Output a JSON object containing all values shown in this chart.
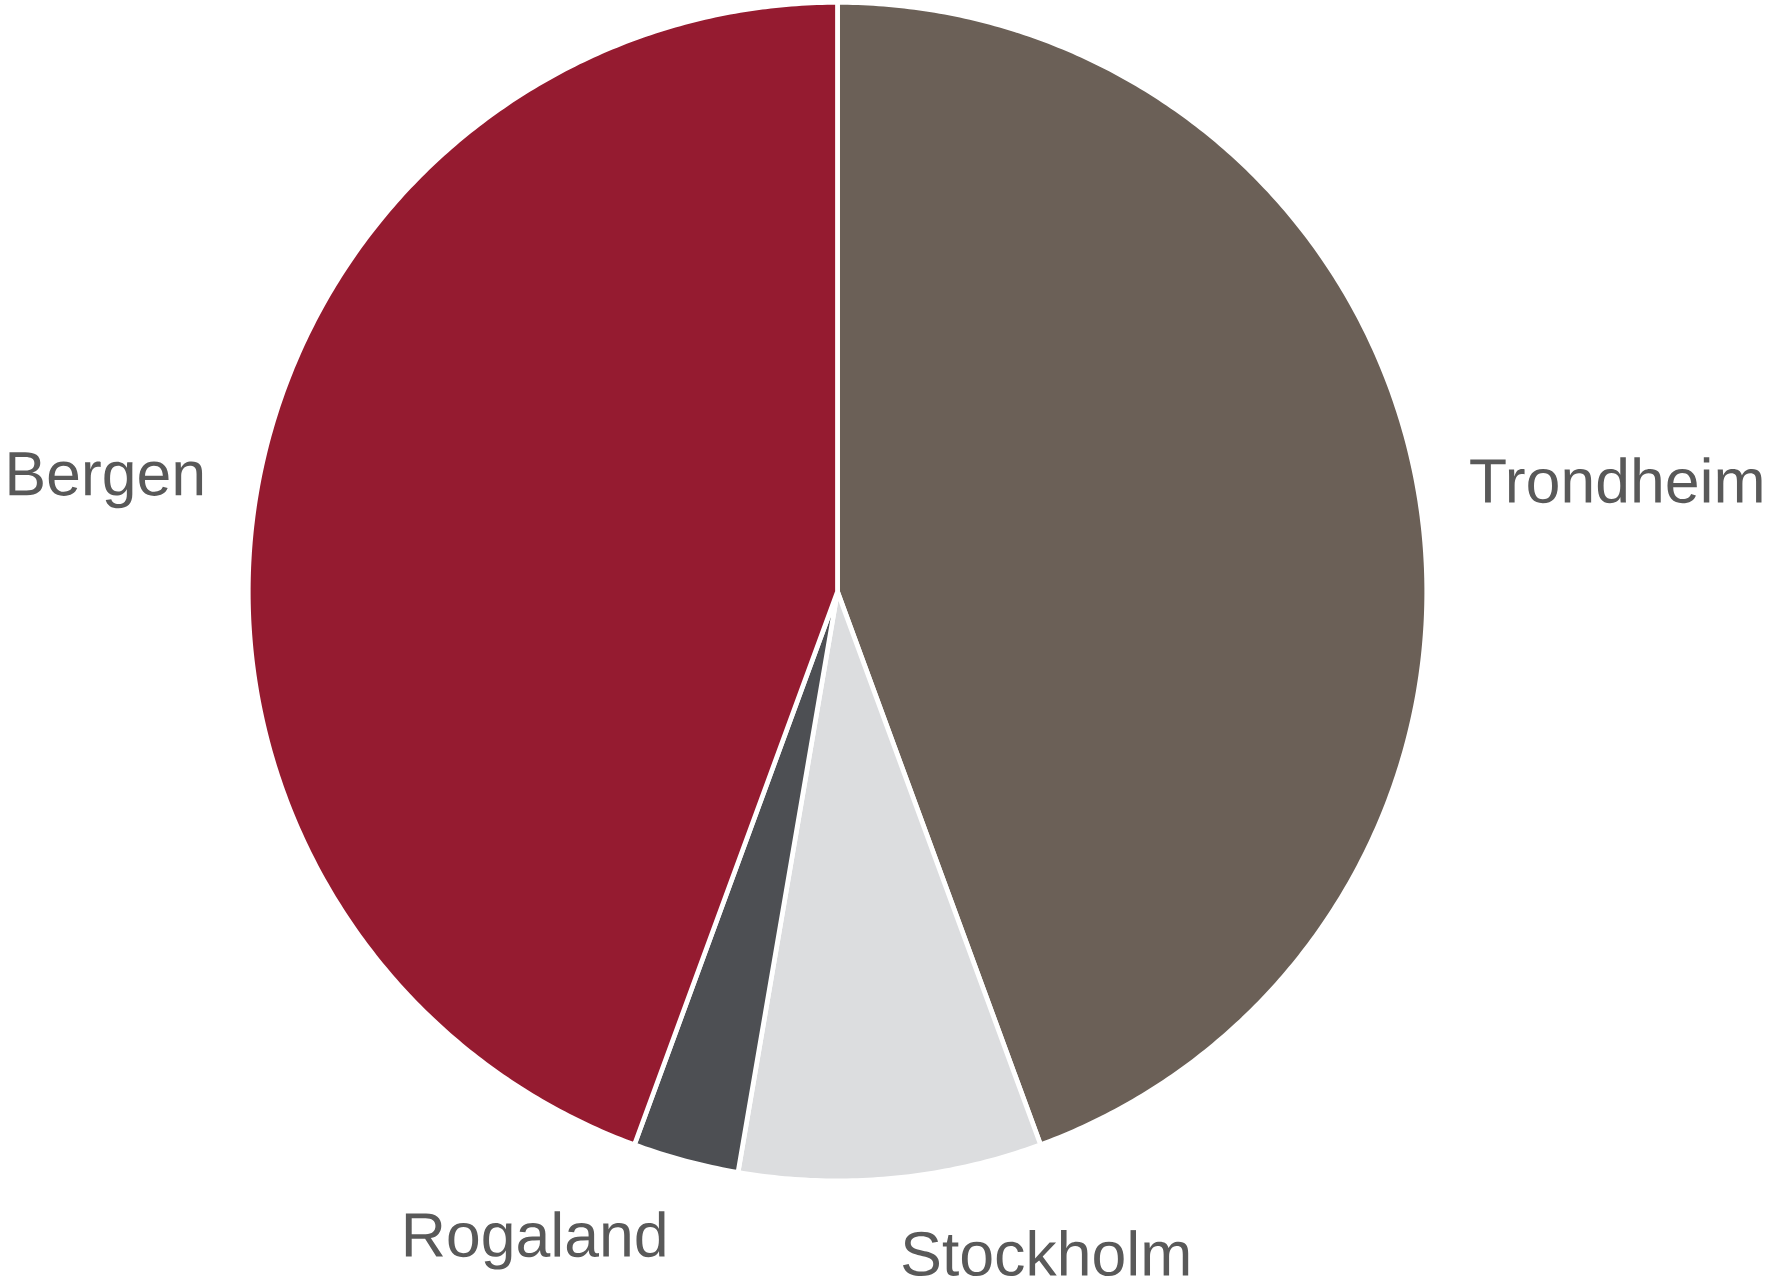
{
  "chart_data": {
    "type": "pie",
    "categories": [
      "Trondheim",
      "Stockholm",
      "Rogaland",
      "Bergen"
    ],
    "values": [
      44.4,
      8.3,
      2.9,
      44.4
    ],
    "colors": [
      "#6b6057",
      "#dcdddf",
      "#4d4f53",
      "#951b30"
    ]
  }
}
